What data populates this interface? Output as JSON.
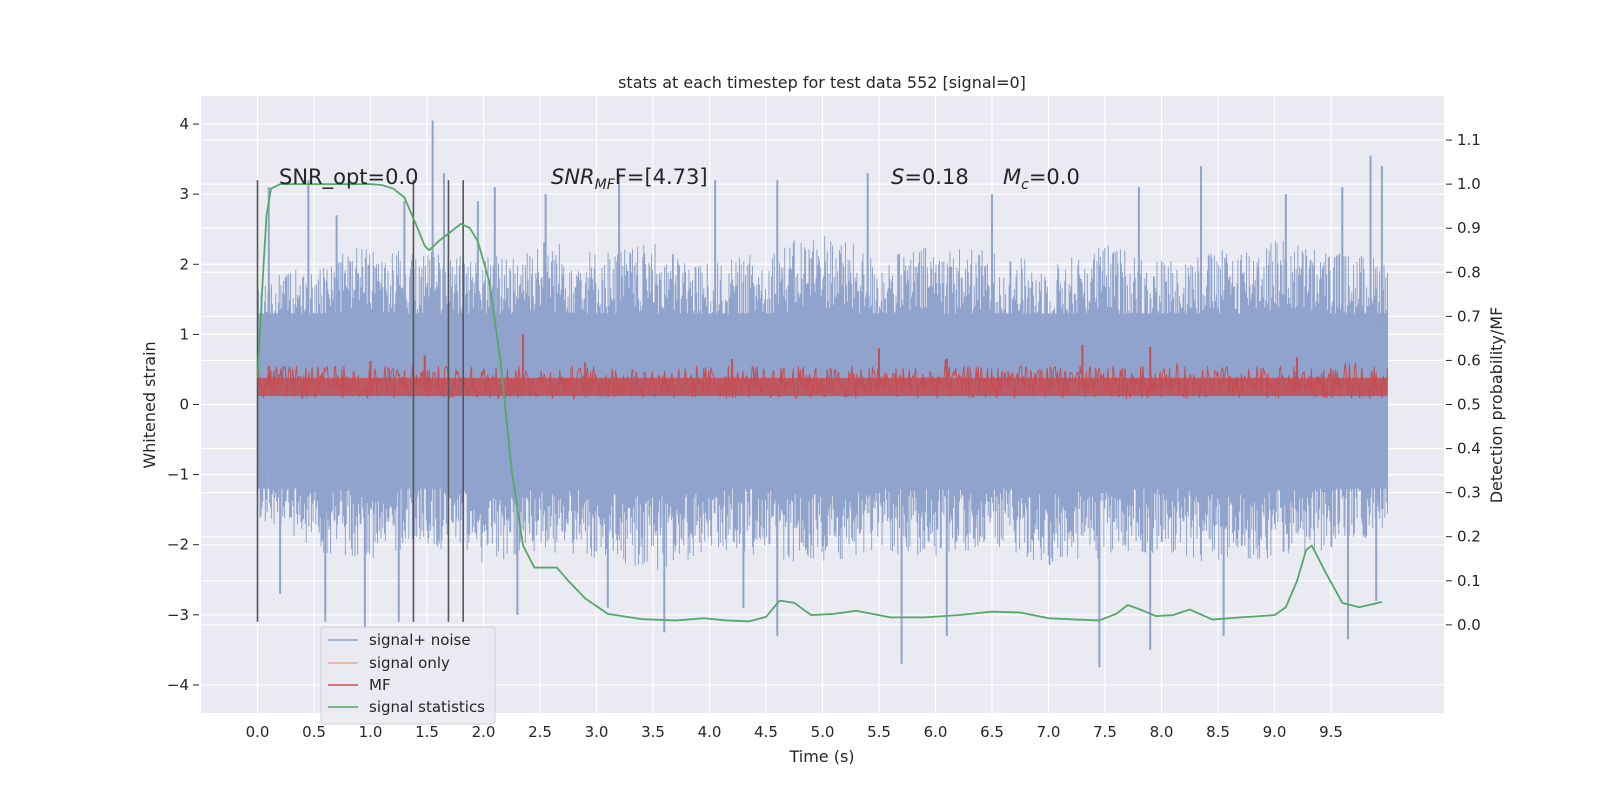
{
  "chart_data": {
    "type": "line",
    "title": "stats at each timestep for test data 552 [signal=0]",
    "xlabel": "Time (s)",
    "ylabel_left": "Whitened strain",
    "ylabel_right": "Detection probability/MF",
    "xlim": [
      -0.5,
      10.5
    ],
    "ylim_left": [
      -4.4,
      4.4
    ],
    "ylim_right": [
      -0.2,
      1.2
    ],
    "x_ticks": [
      0.0,
      0.5,
      1.0,
      1.5,
      2.0,
      2.5,
      3.0,
      3.5,
      4.0,
      4.5,
      5.0,
      5.5,
      6.0,
      6.5,
      7.0,
      7.5,
      8.0,
      8.5,
      9.0,
      9.5
    ],
    "x_tick_labels": [
      "0.0",
      "0.5",
      "1.0",
      "1.5",
      "2.0",
      "2.5",
      "3.0",
      "3.5",
      "4.0",
      "4.5",
      "5.0",
      "5.5",
      "6.0",
      "6.5",
      "7.0",
      "7.5",
      "8.0",
      "8.5",
      "9.0",
      "9.5"
    ],
    "y_left_ticks": [
      4,
      3,
      2,
      1,
      0,
      -1,
      -2,
      -3,
      -4
    ],
    "y_left_tick_labels": [
      "4",
      "3",
      "2",
      "1",
      "0",
      "−1",
      "−2",
      "−3",
      "−4"
    ],
    "y_right_ticks": [
      1.1,
      1.0,
      0.9,
      0.8,
      0.7,
      0.6,
      0.5,
      0.4,
      0.3,
      0.2,
      0.1,
      0.0
    ],
    "y_right_tick_labels": [
      "1.1",
      "1.0",
      "0.9",
      "0.8",
      "0.7",
      "0.6",
      "0.5",
      "0.4",
      "0.3",
      "0.2",
      "0.1",
      "0.0"
    ],
    "grid": true,
    "legend_position": "lower-left",
    "legend": [
      {
        "label": "signal+ noise",
        "color": "#8fa3cc"
      },
      {
        "label": "signal only",
        "color": "#e8a98c"
      },
      {
        "label": "MF",
        "color": "#c44e52"
      },
      {
        "label": "signal statistics",
        "color": "#55a868"
      }
    ],
    "annotations": [
      {
        "text": "SNR_opt=0.0"
      },
      {
        "main": "SNR",
        "sub": "MF",
        "rest": "F=[4.73]"
      },
      {
        "main": "S",
        "rest": "=0.18"
      },
      {
        "main": "M",
        "sub": "c",
        "rest": "=0.0"
      }
    ],
    "vertical_lines_x": [
      0.0,
      1.38,
      1.69,
      1.82
    ],
    "vertical_lines_y_range": [
      -3.1,
      3.2
    ],
    "series": [
      {
        "name": "signal+ noise",
        "axis": "left",
        "color": "#8fa3cc",
        "x_range": [
          0.0,
          10.0
        ],
        "envelope_upper": [
          1.8,
          2.0,
          2.3,
          2.2,
          2.1,
          2.4,
          2.2,
          2.3,
          2.0,
          2.2,
          2.5,
          2.1,
          2.3,
          2.2,
          2.0,
          2.3,
          2.1,
          2.2,
          2.4,
          2.2,
          2.1
        ],
        "envelope_lower": [
          -1.6,
          -2.1,
          -2.2,
          -2.0,
          -2.3,
          -2.1,
          -2.2,
          -2.4,
          -2.1,
          -2.2,
          -2.3,
          -2.1,
          -2.2,
          -2.0,
          -2.3,
          -2.2,
          -2.1,
          -2.3,
          -2.2,
          -2.1,
          -1.8
        ],
        "core_band": [
          -1.2,
          1.3
        ],
        "spikes": [
          [
            0.1,
            3.1
          ],
          [
            0.45,
            3.2
          ],
          [
            0.7,
            2.7
          ],
          [
            1.3,
            2.9
          ],
          [
            1.55,
            4.05
          ],
          [
            1.65,
            3.3
          ],
          [
            1.95,
            2.9
          ],
          [
            2.1,
            3.1
          ],
          [
            2.55,
            3.0
          ],
          [
            3.2,
            3.3
          ],
          [
            4.05,
            3.2
          ],
          [
            4.6,
            3.2
          ],
          [
            5.4,
            3.3
          ],
          [
            6.5,
            3.0
          ],
          [
            7.8,
            3.1
          ],
          [
            8.35,
            3.4
          ],
          [
            9.1,
            3.0
          ],
          [
            9.6,
            3.1
          ],
          [
            9.85,
            3.55
          ],
          [
            9.95,
            3.4
          ],
          [
            0.2,
            -2.7
          ],
          [
            0.6,
            -3.1
          ],
          [
            0.95,
            -3.2
          ],
          [
            1.25,
            -3.1
          ],
          [
            2.3,
            -3.0
          ],
          [
            3.1,
            -2.9
          ],
          [
            3.6,
            -3.25
          ],
          [
            4.3,
            -2.9
          ],
          [
            4.6,
            -3.3
          ],
          [
            5.7,
            -3.7
          ],
          [
            6.1,
            -3.3
          ],
          [
            7.45,
            -3.75
          ],
          [
            7.9,
            -3.5
          ],
          [
            8.55,
            -3.3
          ],
          [
            9.65,
            -3.35
          ],
          [
            9.9,
            -2.8
          ]
        ]
      },
      {
        "name": "MF",
        "axis": "left",
        "color": "#c44e52",
        "x_range": [
          0.0,
          10.0
        ],
        "center": 0.25,
        "band": [
          0.08,
          0.55
        ],
        "peaks": [
          [
            0.1,
            0.55
          ],
          [
            1.0,
            0.62
          ],
          [
            1.48,
            0.7
          ],
          [
            2.35,
            1.0
          ],
          [
            2.9,
            0.6
          ],
          [
            4.2,
            0.65
          ],
          [
            5.5,
            0.8
          ],
          [
            6.1,
            0.65
          ],
          [
            7.3,
            0.85
          ],
          [
            7.9,
            0.82
          ],
          [
            9.2,
            0.68
          ]
        ]
      },
      {
        "name": "signal statistics",
        "axis": "right",
        "color": "#55a868",
        "x": [
          0.0,
          0.05,
          0.08,
          0.12,
          0.2,
          0.35,
          0.6,
          0.9,
          1.0,
          1.1,
          1.2,
          1.3,
          1.4,
          1.48,
          1.52,
          1.6,
          1.7,
          1.8,
          1.88,
          1.95,
          2.05,
          2.15,
          2.25,
          2.35,
          2.45,
          2.55,
          2.65,
          2.75,
          2.9,
          3.1,
          3.4,
          3.7,
          3.95,
          4.15,
          4.35,
          4.5,
          4.62,
          4.75,
          4.9,
          5.1,
          5.3,
          5.6,
          5.9,
          6.2,
          6.5,
          6.75,
          7.0,
          7.25,
          7.45,
          7.6,
          7.7,
          7.8,
          7.95,
          8.1,
          8.25,
          8.45,
          8.7,
          9.0,
          9.1,
          9.2,
          9.28,
          9.33,
          9.45,
          9.6,
          9.75,
          9.95
        ],
        "y": [
          0.56,
          0.8,
          0.93,
          0.99,
          1.0,
          1.0,
          1.0,
          1.0,
          1.0,
          0.998,
          0.99,
          0.97,
          0.91,
          0.86,
          0.85,
          0.87,
          0.89,
          0.91,
          0.9,
          0.87,
          0.78,
          0.6,
          0.35,
          0.18,
          0.13,
          0.13,
          0.13,
          0.1,
          0.06,
          0.025,
          0.013,
          0.01,
          0.015,
          0.01,
          0.008,
          0.018,
          0.055,
          0.05,
          0.022,
          0.025,
          0.032,
          0.017,
          0.017,
          0.022,
          0.03,
          0.028,
          0.015,
          0.012,
          0.01,
          0.025,
          0.045,
          0.036,
          0.02,
          0.022,
          0.035,
          0.012,
          0.017,
          0.022,
          0.04,
          0.1,
          0.17,
          0.18,
          0.12,
          0.05,
          0.04,
          0.052
        ]
      }
    ]
  }
}
